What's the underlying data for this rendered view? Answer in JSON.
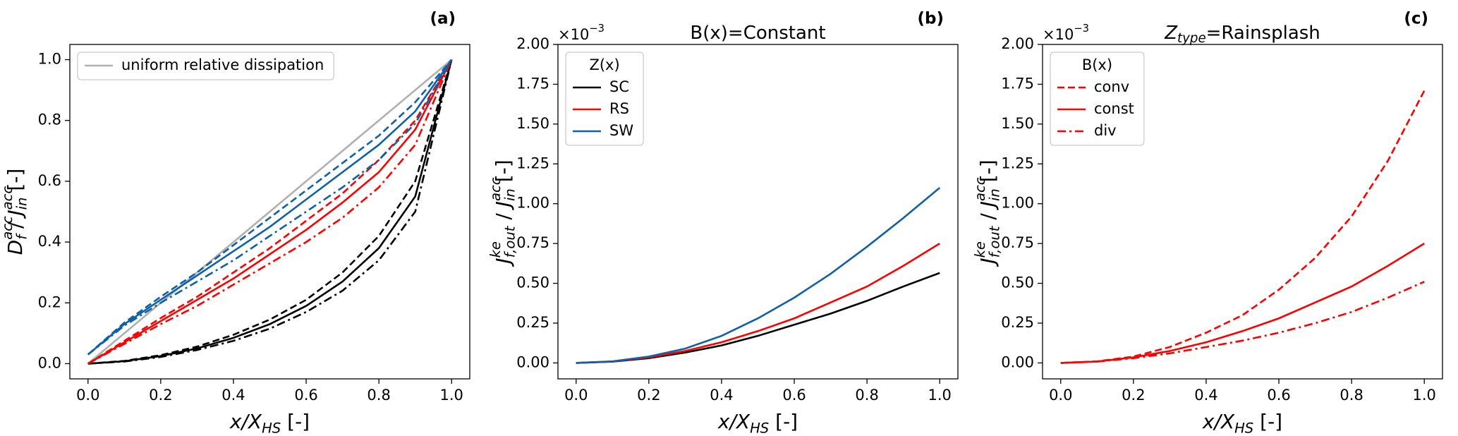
{
  "chart_data": [
    {
      "type": "line",
      "panel_label": "(a)",
      "xlabel": [
        {
          "t": "x/X",
          "math": true,
          "sub": "HS"
        },
        {
          "t": " [-]"
        }
      ],
      "ylabel": [
        {
          "t": "D",
          "math": true,
          "sub": "f",
          "sup": "acc"
        },
        {
          "t": " / "
        },
        {
          "t": "J",
          "math": true,
          "sub": "in",
          "sup": "acc"
        },
        {
          "t": " [-]"
        }
      ],
      "x": [
        0,
        0.1,
        0.2,
        0.3,
        0.4,
        0.5,
        0.6,
        0.7,
        0.8,
        0.9,
        1.0
      ],
      "xlim": [
        -0.05,
        1.05
      ],
      "ylim": [
        -0.05,
        1.05
      ],
      "xticks": [
        {
          "value": 0,
          "label": "0.0"
        },
        {
          "value": 0.2,
          "label": "0.2"
        },
        {
          "value": 0.4,
          "label": "0.4"
        },
        {
          "value": 0.6,
          "label": "0.6"
        },
        {
          "value": 0.8,
          "label": "0.8"
        },
        {
          "value": 1.0,
          "label": "1.0"
        }
      ],
      "yticks": [
        {
          "value": 0,
          "label": "0.0"
        },
        {
          "value": 0.2,
          "label": "0.2"
        },
        {
          "value": 0.4,
          "label": "0.4"
        },
        {
          "value": 0.6,
          "label": "0.6"
        },
        {
          "value": 0.8,
          "label": "0.8"
        },
        {
          "value": 1.0,
          "label": "1.0"
        }
      ],
      "legend": "upper left",
      "series": [
        {
          "name": "uniform relative dissipation",
          "color": "#b0b0b0",
          "dash": "solid",
          "values": [
            0,
            0.1,
            0.2,
            0.3,
            0.4,
            0.5,
            0.6,
            0.7,
            0.8,
            0.9,
            1.0
          ]
        },
        {
          "color": "#000000",
          "dash": "solid",
          "values": [
            0,
            0.008,
            0.025,
            0.05,
            0.085,
            0.13,
            0.19,
            0.27,
            0.38,
            0.55,
            1.0
          ]
        },
        {
          "color": "#000000",
          "dash": "dashed",
          "values": [
            0,
            0.009,
            0.028,
            0.056,
            0.095,
            0.145,
            0.21,
            0.3,
            0.42,
            0.6,
            1.0
          ]
        },
        {
          "color": "#000000",
          "dash": "dashdot",
          "values": [
            0,
            0.007,
            0.022,
            0.045,
            0.075,
            0.115,
            0.17,
            0.24,
            0.34,
            0.5,
            1.0
          ]
        },
        {
          "color": "#ff0000",
          "dash": "solid",
          "values": [
            0,
            0.07,
            0.14,
            0.21,
            0.28,
            0.36,
            0.44,
            0.53,
            0.63,
            0.77,
            1.0
          ]
        },
        {
          "color": "#ff0000",
          "dash": "dashed",
          "values": [
            0,
            0.075,
            0.15,
            0.22,
            0.3,
            0.38,
            0.47,
            0.56,
            0.67,
            0.8,
            1.0
          ]
        },
        {
          "color": "#ff0000",
          "dash": "dashdot",
          "values": [
            0,
            0.065,
            0.13,
            0.19,
            0.26,
            0.33,
            0.4,
            0.48,
            0.58,
            0.72,
            1.0
          ]
        },
        {
          "color": "#1060a8",
          "dash": "solid",
          "values": [
            0.03,
            0.13,
            0.21,
            0.29,
            0.37,
            0.45,
            0.54,
            0.63,
            0.72,
            0.83,
            1.0
          ]
        },
        {
          "color": "#1060a8",
          "dash": "dashed",
          "values": [
            0.03,
            0.135,
            0.22,
            0.3,
            0.39,
            0.48,
            0.57,
            0.66,
            0.75,
            0.86,
            1.0
          ]
        },
        {
          "color": "#1060a8",
          "dash": "dashdot",
          "values": [
            0.03,
            0.125,
            0.2,
            0.27,
            0.34,
            0.42,
            0.5,
            0.58,
            0.67,
            0.79,
            1.0
          ]
        }
      ]
    },
    {
      "type": "line",
      "panel_label": "(b)",
      "title": [
        {
          "t": "B(x)=Constant"
        }
      ],
      "offset_text": [
        {
          "t": "×10",
          "sup": "−3"
        }
      ],
      "xlabel": [
        {
          "t": "x/X",
          "math": true,
          "sub": "HS"
        },
        {
          "t": " [-]"
        }
      ],
      "ylabel": [
        {
          "t": "J",
          "math": true,
          "sub": "f,out",
          "sup": "ke"
        },
        {
          "t": " / "
        },
        {
          "t": "J",
          "math": true,
          "sub": "in",
          "sup": "acc"
        },
        {
          "t": " [-]"
        }
      ],
      "x": [
        0,
        0.1,
        0.2,
        0.3,
        0.4,
        0.5,
        0.6,
        0.7,
        0.8,
        0.9,
        1.0
      ],
      "xlim": [
        -0.05,
        1.05
      ],
      "ylim": [
        -0.1,
        2.0
      ],
      "xticks": [
        {
          "value": 0,
          "label": "0.0"
        },
        {
          "value": 0.2,
          "label": "0.2"
        },
        {
          "value": 0.4,
          "label": "0.4"
        },
        {
          "value": 0.6,
          "label": "0.6"
        },
        {
          "value": 0.8,
          "label": "0.8"
        },
        {
          "value": 1.0,
          "label": "1.0"
        }
      ],
      "yticks": [
        {
          "value": 0,
          "label": "0.00"
        },
        {
          "value": 0.25,
          "label": "0.25"
        },
        {
          "value": 0.5,
          "label": "0.50"
        },
        {
          "value": 0.75,
          "label": "0.75"
        },
        {
          "value": 1.0,
          "label": "1.00"
        },
        {
          "value": 1.25,
          "label": "1.25"
        },
        {
          "value": 1.5,
          "label": "1.50"
        },
        {
          "value": 1.75,
          "label": "1.75"
        },
        {
          "value": 2.0,
          "label": "2.00"
        }
      ],
      "legend": "upper left",
      "legend_title": "Z(x)",
      "series": [
        {
          "name": "SC",
          "color": "#000000",
          "dash": "solid",
          "values": [
            0,
            0.008,
            0.03,
            0.065,
            0.11,
            0.17,
            0.24,
            0.31,
            0.39,
            0.48,
            0.565
          ]
        },
        {
          "name": "RS",
          "color": "#ff0000",
          "dash": "solid",
          "values": [
            0,
            0.009,
            0.035,
            0.075,
            0.13,
            0.2,
            0.28,
            0.38,
            0.48,
            0.61,
            0.75
          ]
        },
        {
          "name": "SW",
          "color": "#1060a8",
          "dash": "solid",
          "values": [
            0,
            0.01,
            0.04,
            0.09,
            0.17,
            0.28,
            0.41,
            0.56,
            0.73,
            0.91,
            1.1
          ]
        }
      ]
    },
    {
      "type": "line",
      "panel_label": "(c)",
      "title": [
        {
          "t": "Z",
          "math": true,
          "sub": "type"
        },
        {
          "t": "=Rainsplash"
        }
      ],
      "offset_text": [
        {
          "t": "×10",
          "sup": "−3"
        }
      ],
      "xlabel": [
        {
          "t": "x/X",
          "math": true,
          "sub": "HS"
        },
        {
          "t": " [-]"
        }
      ],
      "ylabel": [
        {
          "t": "J",
          "math": true,
          "sub": "f,out",
          "sup": "ke"
        },
        {
          "t": " / "
        },
        {
          "t": "J",
          "math": true,
          "sub": "in",
          "sup": "acc"
        },
        {
          "t": " [-]"
        }
      ],
      "x": [
        0,
        0.1,
        0.2,
        0.3,
        0.4,
        0.5,
        0.6,
        0.7,
        0.8,
        0.9,
        1.0
      ],
      "xlim": [
        -0.05,
        1.05
      ],
      "ylim": [
        -0.1,
        2.0
      ],
      "xticks": [
        {
          "value": 0,
          "label": "0.0"
        },
        {
          "value": 0.2,
          "label": "0.2"
        },
        {
          "value": 0.4,
          "label": "0.4"
        },
        {
          "value": 0.6,
          "label": "0.6"
        },
        {
          "value": 0.8,
          "label": "0.8"
        },
        {
          "value": 1.0,
          "label": "1.0"
        }
      ],
      "yticks": [
        {
          "value": 0,
          "label": "0.00"
        },
        {
          "value": 0.25,
          "label": "0.25"
        },
        {
          "value": 0.5,
          "label": "0.50"
        },
        {
          "value": 0.75,
          "label": "0.75"
        },
        {
          "value": 1.0,
          "label": "1.00"
        },
        {
          "value": 1.25,
          "label": "1.25"
        },
        {
          "value": 1.5,
          "label": "1.50"
        },
        {
          "value": 1.75,
          "label": "1.75"
        },
        {
          "value": 2.0,
          "label": "2.00"
        }
      ],
      "legend": "upper left",
      "legend_title": "B(x)",
      "series": [
        {
          "name": "conv",
          "color": "#ff0000",
          "dash": "dashed",
          "values": [
            0,
            0.01,
            0.04,
            0.1,
            0.19,
            0.3,
            0.46,
            0.66,
            0.92,
            1.27,
            1.71
          ]
        },
        {
          "name": "const",
          "color": "#ff0000",
          "dash": "solid",
          "values": [
            0,
            0.009,
            0.035,
            0.075,
            0.13,
            0.2,
            0.28,
            0.38,
            0.48,
            0.61,
            0.75
          ]
        },
        {
          "name": "div",
          "color": "#ff0000",
          "dash": "dashdot",
          "values": [
            0,
            0.008,
            0.03,
            0.06,
            0.1,
            0.14,
            0.19,
            0.25,
            0.32,
            0.41,
            0.51
          ]
        }
      ]
    }
  ]
}
